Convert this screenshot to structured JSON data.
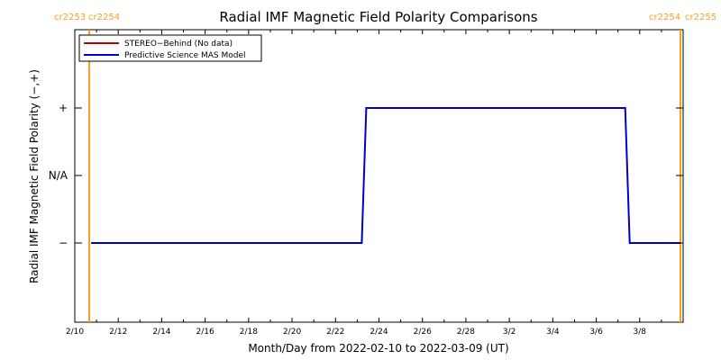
{
  "chart_data": {
    "type": "line",
    "title": "Radial IMF Magnetic Field Polarity Comparisons",
    "xlabel": "Month/Day from 2022-02-10 to 2022-03-09 (UT)",
    "ylabel": "Radial IMF Magnetic Field Polarity (−,+)",
    "xlim": [
      "2022-02-10",
      "2022-03-09"
    ],
    "x_tick_labels": [
      "2/10",
      "2/12",
      "2/14",
      "2/16",
      "2/18",
      "2/20",
      "2/22",
      "2/24",
      "2/26",
      "2/28",
      "3/2",
      "3/4",
      "3/6",
      "3/8"
    ],
    "y_levels": [
      "−",
      "N/A",
      "+"
    ],
    "y_tick_labels": [
      "+",
      "N/A",
      "−"
    ],
    "carrington_markers": [
      {
        "left": "cr2253",
        "right": "cr2254",
        "side": "left",
        "date": "2022-02-10 16:00"
      },
      {
        "left": "cr2254",
        "right": "cr2255",
        "side": "right",
        "date": "2022-03-09 21:00"
      }
    ],
    "legend": {
      "placement": "top-left",
      "entries": [
        {
          "label": "STEREO−Behind (No data)",
          "color": "#c00000"
        },
        {
          "label": "Predictive Science MAS Model",
          "color": "#0000cc"
        }
      ]
    },
    "series": [
      {
        "name": "Predictive Science MAS Model",
        "color": "#0000cc",
        "points": [
          {
            "x": "2022-02-10 18:00",
            "y": "−"
          },
          {
            "x": "2022-02-23 05:00",
            "y": "−"
          },
          {
            "x": "2022-02-23 10:00",
            "y": "+"
          },
          {
            "x": "2022-03-07 08:00",
            "y": "+"
          },
          {
            "x": "2022-03-07 13:00",
            "y": "−"
          },
          {
            "x": "2022-03-09 21:00",
            "y": "−"
          }
        ]
      }
    ],
    "marker_color": "#f5a020",
    "grid": false
  }
}
